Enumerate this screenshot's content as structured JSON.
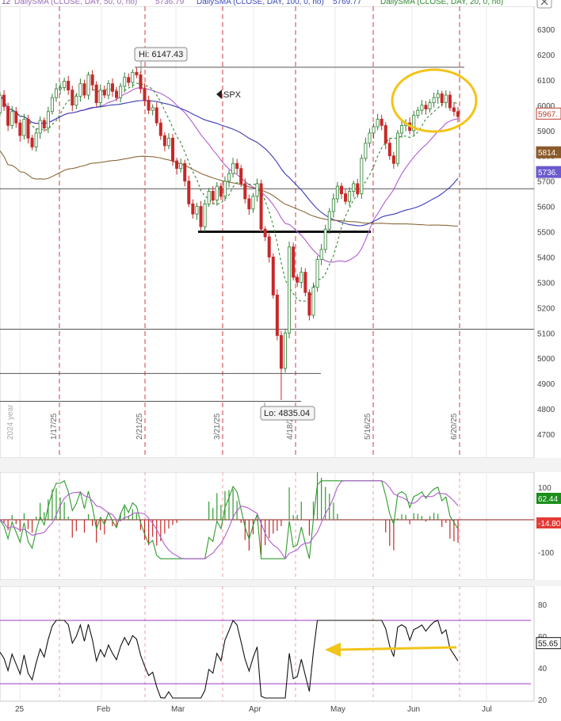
{
  "header": {
    "left_stub": "12",
    "sma50_label": "DailySMA (CLOSE, DAY, 50, 0, no)",
    "sma50_value": "5736.79",
    "sma100_label": "DailySMA (CLOSE, DAY, 100, 0, no)",
    "sma100_value": "5769.77",
    "sma20_label": "DailySMA (CLOSE, DAY, 20, 0, no)"
  },
  "chart_data": [
    {
      "type": "candlestick",
      "symbol": "SPX",
      "y_axis_ticks": [
        "6300",
        "6200",
        "6100",
        "6000",
        "5900",
        "5800",
        "5700",
        "5600",
        "5500",
        "5400",
        "5300",
        "5200",
        "5100",
        "5000",
        "4900",
        "4800",
        "4700"
      ],
      "ylim": [
        4650,
        6350
      ],
      "high_annotation": "Hi: 6147.43",
      "low_annotation": "Lo: 4835.04",
      "date_markers": [
        "2024 year",
        "1/17/25",
        "2/21/25",
        "3/21/25",
        "4/18/25",
        "5/16/25",
        "6/20/25"
      ],
      "price_badges": [
        {
          "label": "5967.",
          "value": 5967,
          "color": "#c0392b"
        },
        {
          "label": "5814.",
          "value": 5814,
          "color": "#8b5a2b"
        },
        {
          "label": "5736.",
          "value": 5736,
          "color": "#6a5acd"
        }
      ],
      "horizontal_levels": [
        6150,
        5670,
        5500,
        5115,
        4940,
        4830
      ],
      "candles": [
        {
          "o": 5970,
          "c": 6040
        },
        {
          "o": 6040,
          "c": 5995
        },
        {
          "o": 5995,
          "c": 5920
        },
        {
          "o": 5920,
          "c": 5975
        },
        {
          "o": 5975,
          "c": 5930
        },
        {
          "o": 5930,
          "c": 5880
        },
        {
          "o": 5880,
          "c": 5945
        },
        {
          "o": 5945,
          "c": 5870
        },
        {
          "o": 5870,
          "c": 5835
        },
        {
          "o": 5835,
          "c": 5890
        },
        {
          "o": 5890,
          "c": 5940
        },
        {
          "o": 5940,
          "c": 5910
        },
        {
          "o": 5910,
          "c": 5975
        },
        {
          "o": 5975,
          "c": 6030
        },
        {
          "o": 6030,
          "c": 6065
        },
        {
          "o": 6065,
          "c": 6070
        },
        {
          "o": 6070,
          "c": 6095
        },
        {
          "o": 6095,
          "c": 6060
        },
        {
          "o": 6060,
          "c": 6000
        },
        {
          "o": 6000,
          "c": 6035
        },
        {
          "o": 6035,
          "c": 6085
        },
        {
          "o": 6085,
          "c": 6040
        },
        {
          "o": 6040,
          "c": 6120
        },
        {
          "o": 6120,
          "c": 6080
        },
        {
          "o": 6080,
          "c": 6010
        },
        {
          "o": 6010,
          "c": 6060
        },
        {
          "o": 6060,
          "c": 6040
        },
        {
          "o": 6040,
          "c": 6085
        },
        {
          "o": 6085,
          "c": 6055
        },
        {
          "o": 6055,
          "c": 6030
        },
        {
          "o": 6030,
          "c": 6075
        },
        {
          "o": 6075,
          "c": 6110
        },
        {
          "o": 6110,
          "c": 6090
        },
        {
          "o": 6090,
          "c": 6130
        },
        {
          "o": 6130,
          "c": 6120
        },
        {
          "o": 6120,
          "c": 6065
        },
        {
          "o": 6065,
          "c": 6020
        },
        {
          "o": 6020,
          "c": 5980
        },
        {
          "o": 5980,
          "c": 5990
        },
        {
          "o": 5990,
          "c": 5930
        },
        {
          "o": 5930,
          "c": 5880
        },
        {
          "o": 5880,
          "c": 5840
        },
        {
          "o": 5840,
          "c": 5870
        },
        {
          "o": 5870,
          "c": 5780
        },
        {
          "o": 5780,
          "c": 5750
        },
        {
          "o": 5750,
          "c": 5770
        },
        {
          "o": 5770,
          "c": 5700
        },
        {
          "o": 5700,
          "c": 5610
        },
        {
          "o": 5610,
          "c": 5570
        },
        {
          "o": 5570,
          "c": 5600
        },
        {
          "o": 5600,
          "c": 5520
        },
        {
          "o": 5520,
          "c": 5610
        },
        {
          "o": 5610,
          "c": 5660
        },
        {
          "o": 5660,
          "c": 5625
        },
        {
          "o": 5625,
          "c": 5680
        },
        {
          "o": 5680,
          "c": 5640
        },
        {
          "o": 5640,
          "c": 5700
        },
        {
          "o": 5700,
          "c": 5730
        },
        {
          "o": 5730,
          "c": 5770
        },
        {
          "o": 5770,
          "c": 5750
        },
        {
          "o": 5750,
          "c": 5690
        },
        {
          "o": 5690,
          "c": 5630
        },
        {
          "o": 5630,
          "c": 5590
        },
        {
          "o": 5590,
          "c": 5640
        },
        {
          "o": 5640,
          "c": 5690
        },
        {
          "o": 5690,
          "c": 5510
        },
        {
          "o": 5510,
          "c": 5480
        },
        {
          "o": 5480,
          "c": 5400
        },
        {
          "o": 5400,
          "c": 5250
        },
        {
          "o": 5250,
          "c": 5090
        },
        {
          "o": 5090,
          "c": 4960
        },
        {
          "o": 4960,
          "c": 5100
        },
        {
          "o": 5100,
          "c": 5440
        },
        {
          "o": 5440,
          "c": 5320
        },
        {
          "o": 5320,
          "c": 5300
        },
        {
          "o": 5300,
          "c": 5340
        },
        {
          "o": 5340,
          "c": 5260
        },
        {
          "o": 5260,
          "c": 5170
        },
        {
          "o": 5170,
          "c": 5280
        },
        {
          "o": 5280,
          "c": 5390
        },
        {
          "o": 5390,
          "c": 5430
        },
        {
          "o": 5430,
          "c": 5510
        },
        {
          "o": 5510,
          "c": 5580
        },
        {
          "o": 5580,
          "c": 5630
        },
        {
          "o": 5630,
          "c": 5680
        },
        {
          "o": 5680,
          "c": 5650
        },
        {
          "o": 5650,
          "c": 5620
        },
        {
          "o": 5620,
          "c": 5660
        },
        {
          "o": 5660,
          "c": 5690
        },
        {
          "o": 5690,
          "c": 5650
        },
        {
          "o": 5650,
          "c": 5790
        },
        {
          "o": 5790,
          "c": 5850
        },
        {
          "o": 5850,
          "c": 5890
        },
        {
          "o": 5890,
          "c": 5915
        },
        {
          "o": 5915,
          "c": 5945
        },
        {
          "o": 5945,
          "c": 5920
        },
        {
          "o": 5920,
          "c": 5850
        },
        {
          "o": 5850,
          "c": 5800
        },
        {
          "o": 5800,
          "c": 5770
        },
        {
          "o": 5770,
          "c": 5890
        },
        {
          "o": 5890,
          "c": 5920
        },
        {
          "o": 5920,
          "c": 5930
        },
        {
          "o": 5930,
          "c": 5900
        },
        {
          "o": 5900,
          "c": 5960
        },
        {
          "o": 5960,
          "c": 5980
        },
        {
          "o": 5980,
          "c": 6000
        },
        {
          "o": 6000,
          "c": 5985
        },
        {
          "o": 5985,
          "c": 6010
        },
        {
          "o": 6010,
          "c": 6030
        },
        {
          "o": 6030,
          "c": 6045
        },
        {
          "o": 6045,
          "c": 6010
        },
        {
          "o": 6010,
          "c": 6040
        },
        {
          "o": 6040,
          "c": 5990
        },
        {
          "o": 5990,
          "c": 5975
        },
        {
          "o": 5975,
          "c": 5955
        }
      ]
    },
    {
      "type": "line",
      "name": "oscillator",
      "y_axis_ticks": [
        "100",
        "-100"
      ],
      "badges": [
        {
          "label": "62.44",
          "color": "#1a8f1a"
        },
        {
          "label": "-14.80",
          "color": "#e53935"
        }
      ]
    },
    {
      "type": "line",
      "name": "rsi",
      "y_axis_ticks": [
        "80",
        "60",
        "40",
        "20"
      ],
      "ylim": [
        20,
        85
      ],
      "guide_levels": [
        70,
        30
      ],
      "badge": "55.65",
      "x_axis_labels": [
        "25",
        "Feb",
        "Mar",
        "Apr",
        "May",
        "Jun",
        "Jul"
      ]
    }
  ]
}
